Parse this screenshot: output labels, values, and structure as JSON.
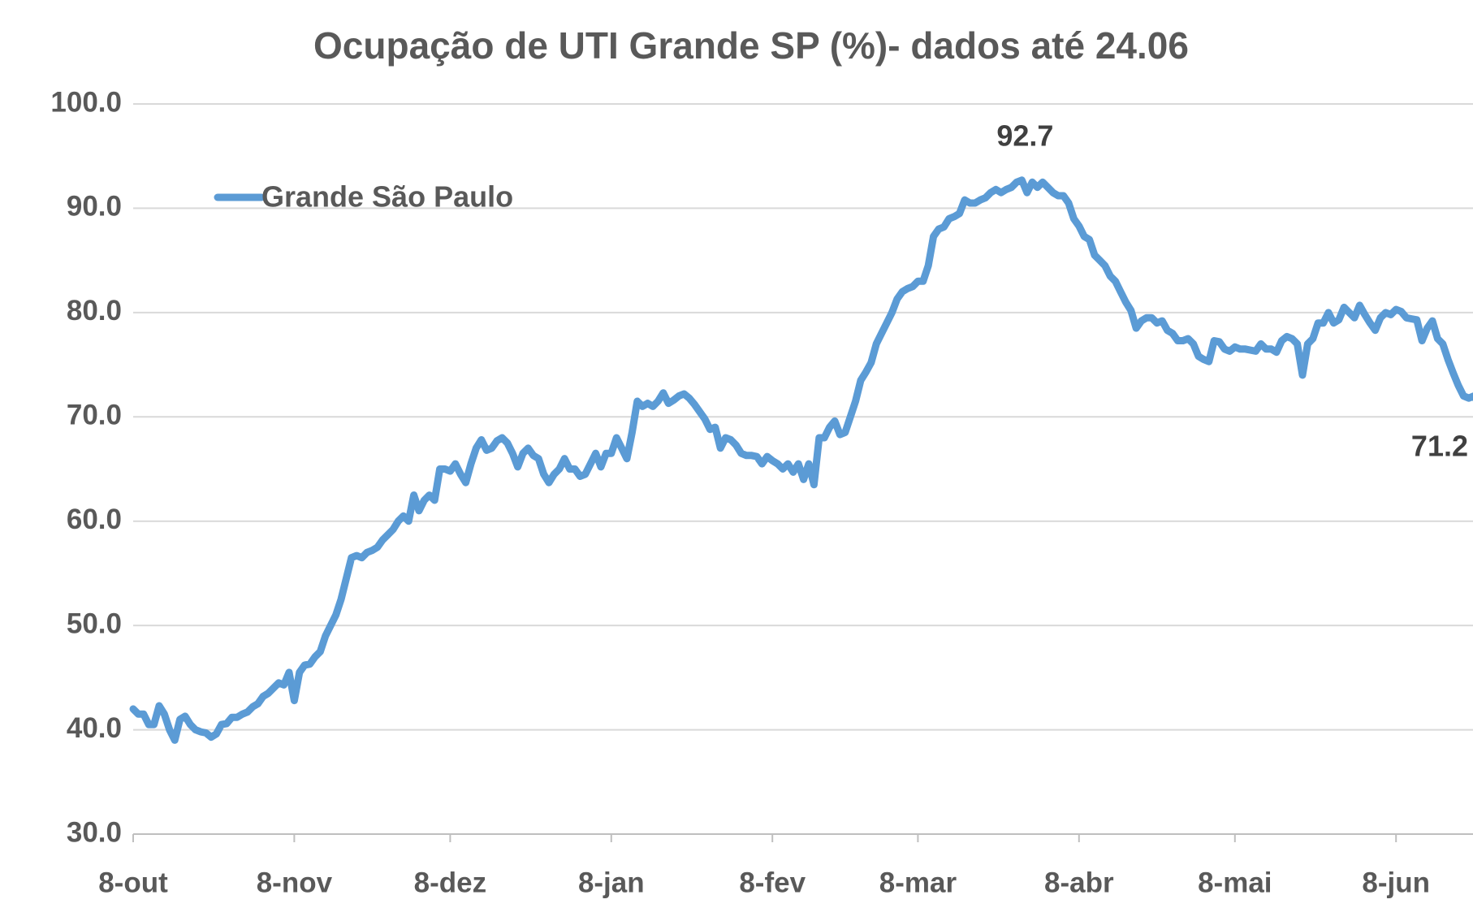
{
  "chart_data": {
    "type": "line",
    "title": "Ocupação de UTI Grande SP (%)- dados até 24.06",
    "categories": [
      "8-out",
      null,
      null,
      null,
      null,
      null,
      null,
      null,
      null,
      null,
      null,
      null,
      null,
      null,
      null,
      null,
      null,
      null,
      null,
      null,
      null,
      null,
      null,
      null,
      null,
      null,
      null,
      null,
      null,
      null,
      null,
      "8-nov",
      null,
      null,
      null,
      null,
      null,
      null,
      null,
      null,
      null,
      null,
      null,
      null,
      null,
      null,
      null,
      null,
      null,
      null,
      null,
      null,
      null,
      null,
      null,
      null,
      null,
      null,
      null,
      null,
      null,
      "8-dez",
      null,
      null,
      null,
      null,
      null,
      null,
      null,
      null,
      null,
      null,
      null,
      null,
      null,
      null,
      null,
      null,
      null,
      null,
      null,
      null,
      null,
      null,
      null,
      null,
      null,
      null,
      null,
      null,
      null,
      null,
      "8-jan",
      null,
      null,
      null,
      null,
      null,
      null,
      null,
      null,
      null,
      null,
      null,
      null,
      null,
      null,
      null,
      null,
      null,
      null,
      null,
      null,
      null,
      null,
      null,
      null,
      null,
      null,
      null,
      null,
      null,
      null,
      "8-fev",
      null,
      null,
      null,
      null,
      null,
      null,
      null,
      null,
      null,
      null,
      null,
      null,
      null,
      null,
      null,
      null,
      null,
      null,
      null,
      null,
      null,
      null,
      null,
      null,
      null,
      null,
      null,
      "8-mar",
      null,
      null,
      null,
      null,
      null,
      null,
      null,
      null,
      null,
      null,
      null,
      null,
      null,
      null,
      null,
      null,
      null,
      null,
      null,
      null,
      null,
      null,
      null,
      null,
      null,
      null,
      null,
      null,
      null,
      null,
      "8-abr",
      null,
      null,
      null,
      null,
      null,
      null,
      null,
      null,
      null,
      null,
      null,
      null,
      null,
      null,
      null,
      null,
      null,
      null,
      null,
      null,
      null,
      null,
      null,
      null,
      null,
      null,
      null,
      null,
      null,
      "8-mai",
      null,
      null,
      null,
      null,
      null,
      null,
      null,
      null,
      null,
      null,
      null,
      null,
      null,
      null,
      null,
      null,
      null,
      null,
      null,
      null,
      null,
      null,
      null,
      null,
      null,
      null,
      null,
      null,
      null,
      null,
      "8-jun",
      null,
      null,
      null,
      null,
      null,
      null,
      null,
      null,
      null,
      null,
      null,
      null,
      null,
      null,
      null,
      null
    ],
    "series": [
      {
        "name": "Grande São Paulo",
        "color": "#5b9bd5",
        "values": [
          42,
          41.5,
          41.5,
          40.5,
          40.5,
          42.3,
          41.5,
          40,
          39,
          41,
          41.3,
          40.5,
          40,
          39.8,
          39.7,
          39.3,
          39.6,
          40.5,
          40.6,
          41.2,
          41.2,
          41.5,
          41.7,
          42.2,
          42.5,
          43.2,
          43.5,
          44,
          44.5,
          44.3,
          45.5,
          42.8,
          45.5,
          46.2,
          46.3,
          47,
          47.5,
          49,
          50,
          51,
          52.5,
          54.5,
          56.5,
          56.7,
          56.5,
          57,
          57.2,
          57.5,
          58.2,
          58.7,
          59.2,
          60,
          60.5,
          60,
          62.5,
          61,
          62,
          62.5,
          62,
          65,
          65,
          64.8,
          65.5,
          64.5,
          63.7,
          65.5,
          67,
          67.8,
          66.8,
          67,
          67.7,
          68,
          67.5,
          66.5,
          65.2,
          66.5,
          67,
          66.3,
          66,
          64.5,
          63.7,
          64.5,
          65,
          66,
          65,
          65,
          64.3,
          64.5,
          65.5,
          66.5,
          65.2,
          66.5,
          66.5,
          68,
          67,
          66,
          68.5,
          71.5,
          71,
          71.3,
          71,
          71.5,
          72.3,
          71.3,
          71.6,
          72,
          72.2,
          71.8,
          71.2,
          70.5,
          69.8,
          68.8,
          69,
          67,
          68,
          67.8,
          67.3,
          66.5,
          66.3,
          66.3,
          66.2,
          65.5,
          66.2,
          65.8,
          65.5,
          65,
          65.5,
          64.7,
          65.5,
          64,
          65.5,
          63.5,
          68,
          68,
          69,
          69.6,
          68.3,
          68.5,
          70,
          71.5,
          73.5,
          74.3,
          75.2,
          77,
          78,
          79,
          80,
          81.3,
          82,
          82.3,
          82.5,
          83,
          83,
          84.5,
          87.3,
          88,
          88.2,
          89,
          89.2,
          89.5,
          90.8,
          90.5,
          90.5,
          90.8,
          91,
          91.5,
          91.8,
          91.5,
          91.8,
          92,
          92.5,
          92.7,
          91.5,
          92.5,
          92,
          92.5,
          92,
          91.5,
          91.2,
          91.2,
          90.5,
          89,
          88.3,
          87.3,
          87,
          85.5,
          85,
          84.5,
          83.5,
          83,
          82,
          81,
          80.2,
          78.5,
          79.2,
          79.5,
          79.5,
          79,
          79.2,
          78.3,
          78,
          77.3,
          77.3,
          77.5,
          77,
          75.8,
          75.5,
          75.3,
          77.3,
          77.2,
          76.5,
          76.3,
          76.7,
          76.5,
          76.5,
          76.4,
          76.3,
          77,
          76.5,
          76.5,
          76.2,
          77.3,
          77.7,
          77.5,
          77,
          74,
          77,
          77.5,
          79,
          79,
          80,
          79,
          79.3,
          80.5,
          80,
          79.5,
          80.7,
          79.8,
          79,
          78.3,
          79.5,
          80,
          79.8,
          80.3,
          80.1,
          79.5,
          79.4,
          79.3,
          77.3,
          78.5,
          79.2,
          77.5,
          77,
          75.5,
          74.2,
          73,
          72,
          71.8,
          72,
          71.2
        ]
      }
    ],
    "annotations": [
      "92.7",
      "71.2"
    ],
    "ylim": [
      30,
      100
    ],
    "yticks": [
      {
        "value": 30,
        "label": "30.0"
      },
      {
        "value": 40,
        "label": "40.0"
      },
      {
        "value": 50,
        "label": "50.0"
      },
      {
        "value": 60,
        "label": "60.0"
      },
      {
        "value": 70,
        "label": "70.0"
      },
      {
        "value": 80,
        "label": "80.0"
      },
      {
        "value": 90,
        "label": "90.0"
      },
      {
        "value": 100,
        "label": "100.0"
      }
    ],
    "grid": true,
    "legend": "upper left"
  }
}
